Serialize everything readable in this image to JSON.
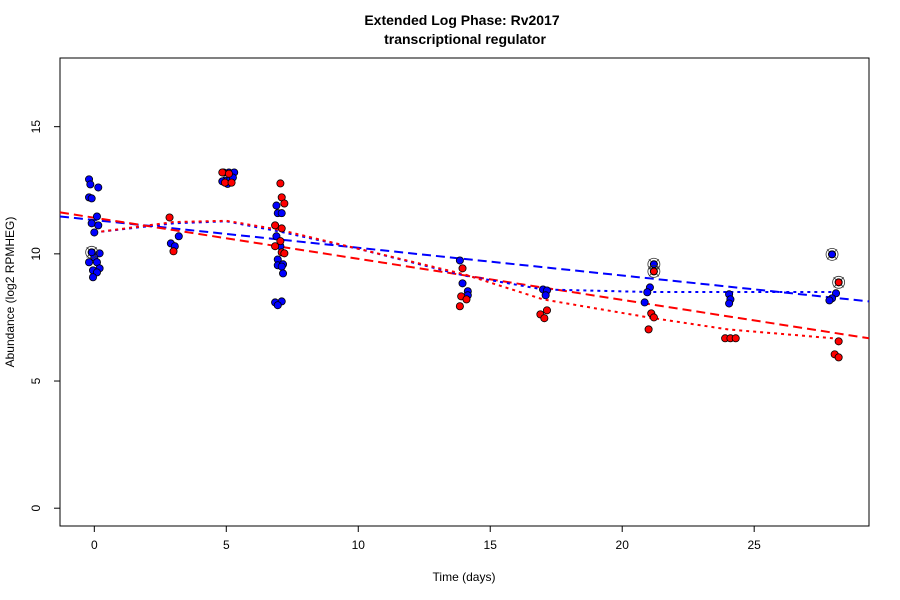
{
  "chart_data": {
    "type": "scatter",
    "title": "Extended Log Phase:      Rv2017",
    "subtitle": "transcriptional regulator",
    "xlabel": "Time  (days)",
    "ylabel": "Abundance  (log2 RPMHEG)",
    "xlim": [
      -1.3,
      29.35
    ],
    "ylim": [
      -0.7,
      17.7
    ],
    "xticks": [
      0,
      5,
      10,
      15,
      20,
      25
    ],
    "yticks": [
      0,
      5,
      10,
      15
    ],
    "grid": false,
    "colors": {
      "blue": "#0000ff",
      "red": "#ff0000"
    },
    "series": [
      {
        "color": "blue",
        "points": [
          [
            -0.2,
            12.93
          ],
          [
            -0.15,
            12.73
          ],
          [
            0.15,
            12.61
          ],
          [
            -0.2,
            12.22
          ],
          [
            -0.1,
            12.18
          ],
          [
            0.1,
            11.47
          ],
          [
            -0.1,
            11.2
          ],
          [
            0.15,
            11.12
          ],
          [
            0,
            10.84
          ],
          [
            -0.1,
            10.06
          ],
          [
            0.2,
            10.02
          ],
          [
            0,
            9.86
          ],
          [
            -0.2,
            9.67
          ],
          [
            0.1,
            9.67
          ],
          [
            0.2,
            9.43
          ],
          [
            -0.05,
            9.35
          ],
          [
            0.1,
            9.27
          ],
          [
            -0.05,
            9.08
          ],
          [
            3.2,
            10.69
          ],
          [
            2.9,
            10.41
          ],
          [
            3.05,
            10.3
          ],
          [
            4.9,
            13.2
          ],
          [
            5.1,
            13.2
          ],
          [
            5.3,
            13.2
          ],
          [
            4.95,
            12.88
          ],
          [
            5.15,
            12.92
          ],
          [
            5.25,
            13.0
          ],
          [
            4.85,
            12.85
          ],
          [
            5.05,
            12.75
          ],
          [
            6.9,
            11.9
          ],
          [
            6.95,
            11.6
          ],
          [
            7.1,
            11.6
          ],
          [
            6.9,
            10.69
          ],
          [
            7.05,
            10.3
          ],
          [
            6.95,
            9.78
          ],
          [
            6.95,
            9.55
          ],
          [
            7.15,
            9.59
          ],
          [
            7.1,
            9.5
          ],
          [
            7.15,
            9.23
          ],
          [
            6.85,
            8.09
          ],
          [
            7.1,
            8.13
          ],
          [
            6.95,
            7.98
          ],
          [
            13.85,
            9.74
          ],
          [
            13.95,
            8.84
          ],
          [
            14.15,
            8.53
          ],
          [
            14.15,
            8.37
          ],
          [
            17.0,
            8.6
          ],
          [
            17.15,
            8.56
          ],
          [
            17.1,
            8.37
          ],
          [
            21.2,
            9.59
          ],
          [
            21.05,
            8.68
          ],
          [
            20.95,
            8.49
          ],
          [
            20.85,
            8.09
          ],
          [
            24.05,
            8.41
          ],
          [
            24.1,
            8.21
          ],
          [
            24.05,
            8.05
          ],
          [
            27.95,
            9.98
          ],
          [
            28.1,
            8.45
          ],
          [
            27.95,
            8.25
          ],
          [
            27.85,
            8.17
          ]
        ]
      },
      {
        "color": "red",
        "points": [
          [
            2.85,
            11.43
          ],
          [
            3.0,
            10.1
          ],
          [
            4.85,
            13.2
          ],
          [
            5.1,
            13.15
          ],
          [
            4.95,
            12.8
          ],
          [
            5.2,
            12.8
          ],
          [
            7.05,
            12.77
          ],
          [
            7.1,
            12.22
          ],
          [
            7.2,
            11.98
          ],
          [
            6.85,
            11.12
          ],
          [
            7.1,
            11.0
          ],
          [
            7.05,
            10.5
          ],
          [
            6.85,
            10.3
          ],
          [
            7.1,
            10.06
          ],
          [
            7.2,
            10.02
          ],
          [
            13.95,
            9.43
          ],
          [
            13.9,
            8.33
          ],
          [
            14.1,
            8.21
          ],
          [
            13.85,
            7.94
          ],
          [
            17.15,
            7.78
          ],
          [
            16.9,
            7.62
          ],
          [
            17.05,
            7.47
          ],
          [
            21.2,
            9.31
          ],
          [
            21.1,
            7.66
          ],
          [
            21.2,
            7.5
          ],
          [
            21.0,
            7.03
          ],
          [
            23.9,
            6.68
          ],
          [
            24.1,
            6.68
          ],
          [
            24.3,
            6.68
          ],
          [
            28.2,
            8.88
          ],
          [
            28.2,
            6.56
          ],
          [
            28.05,
            6.05
          ],
          [
            28.2,
            5.93
          ]
        ]
      }
    ],
    "highlighted": [
      {
        "color": "blue",
        "x": -0.1,
        "y": 10.06
      },
      {
        "color": "blue",
        "x": 21.2,
        "y": 9.59
      },
      {
        "color": "red",
        "x": 21.2,
        "y": 9.31
      },
      {
        "color": "blue",
        "x": 27.95,
        "y": 9.98
      },
      {
        "color": "red",
        "x": 28.2,
        "y": 8.88
      }
    ],
    "trend_lines": [
      {
        "color": "blue",
        "style": "dashed",
        "x": [
          -1.3,
          29.35
        ],
        "y": [
          11.47,
          8.13
        ]
      },
      {
        "color": "red",
        "style": "dashed",
        "x": [
          -1.3,
          29.35
        ],
        "y": [
          11.63,
          6.68
        ]
      },
      {
        "color": "blue",
        "style": "dotted",
        "x": [
          0,
          3,
          5,
          7,
          10,
          14,
          17,
          21,
          24,
          28
        ],
        "y": [
          10.84,
          11.2,
          11.28,
          10.88,
          10.2,
          9.15,
          8.6,
          8.5,
          8.5,
          8.5
        ]
      },
      {
        "color": "red",
        "style": "dotted",
        "x": [
          0,
          3,
          5,
          7,
          10,
          14,
          17,
          21,
          24,
          28
        ],
        "y": [
          10.84,
          11.25,
          11.3,
          10.95,
          10.2,
          9.2,
          8.21,
          7.5,
          7.03,
          6.68
        ]
      }
    ]
  }
}
